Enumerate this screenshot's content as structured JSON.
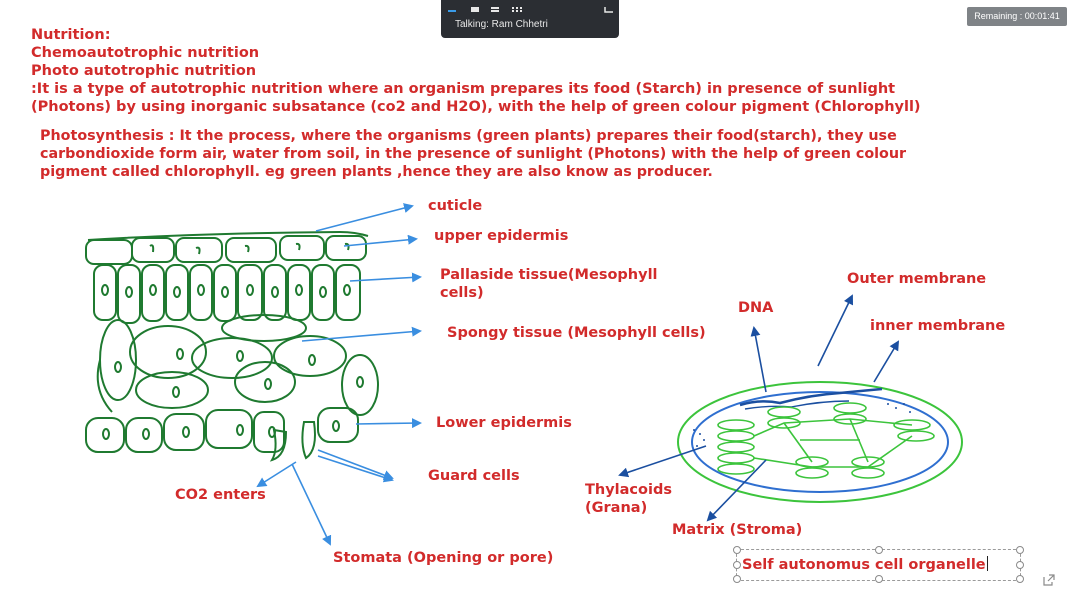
{
  "call": {
    "talking_text": "Talking: Ram Chhetri",
    "timer_text": "Remaining : 00:01:41"
  },
  "notes": {
    "intro_lines": [
      "Nutrition:",
      "Chemoautotrophic nutrition",
      "Photo autotrophic nutrition",
      ":It is a type of autotrophic nutrition where an organism prepares its food (Starch) in presence of sunlight",
      "(Photons) by using inorganic subsatance (co2 and H2O), with the help of green colour pigment (Chlorophyll)"
    ],
    "photosynthesis_lines": [
      "Photosynthesis : It the process, where the organisms (green plants) prepares their food(starch), they use",
      "carbondioxide form air, water from soil, in the presence of sunlight (Photons) with the help of green colour",
      "pigment called chlorophyll. eg green plants ,hence they are also know as producer."
    ]
  },
  "leaf_labels": {
    "cuticle": "cuticle",
    "upper_epidermis": "upper epidermis",
    "palisade_line1": "Pallaside tissue(Mesophyll",
    "palisade_line2": "cells)",
    "spongy": "Spongy tissue (Mesophyll cells)",
    "lower_epidermis": "Lower epidermis",
    "guard_cells": "Guard cells",
    "co2": "CO2 enters",
    "stomata": "Stomata (Opening or pore)"
  },
  "chloroplast_labels": {
    "outer_membrane": "Outer membrane",
    "dna": "DNA",
    "inner_membrane": "inner membrane",
    "thylakoids_line1": "Thylacoids",
    "thylakoids_line2": "(Grana)",
    "matrix": "Matrix (Stroma)"
  },
  "textbox": {
    "text": "Self autonomus cell organelle"
  },
  "colors": {
    "text_red": "#d22b2b",
    "arrow_blue": "#3a8ee0",
    "dark_blue": "#1b4fa0",
    "leaf_green": "#1f7a30",
    "bright_green": "#3cc43c",
    "membrane_blue": "#2f6fd0"
  }
}
